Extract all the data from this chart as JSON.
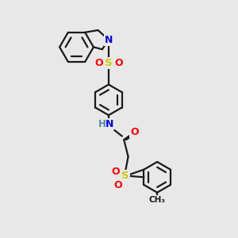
{
  "bg_color": "#e8e8e8",
  "bond_color": "#1a1a1a",
  "bond_width": 1.6,
  "atom_colors": {
    "N": "#0000ee",
    "S": "#cccc00",
    "O": "#ff0000",
    "C": "#1a1a1a",
    "H": "#4a8fa0"
  },
  "xlim": [
    0,
    10
  ],
  "ylim": [
    0,
    10
  ]
}
